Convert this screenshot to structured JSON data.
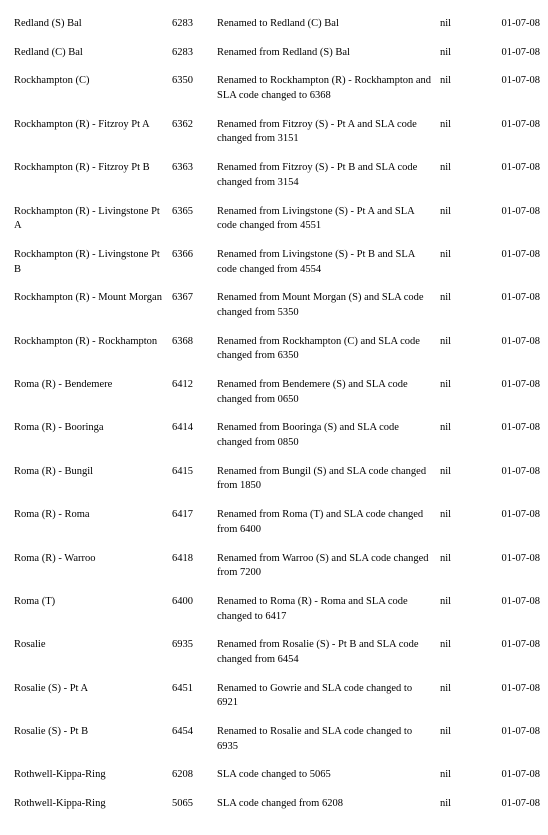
{
  "rows": [
    {
      "name": "Redland (S) Bal",
      "code": "6283",
      "desc": "Renamed to Redland (C) Bal",
      "nil": "nil",
      "date": "01-07-08"
    },
    {
      "name": "Redland (C) Bal",
      "code": "6283",
      "desc": "Renamed from Redland (S) Bal",
      "nil": "nil",
      "date": "01-07-08"
    },
    {
      "name": "Rockhampton (C)",
      "code": "6350",
      "desc": "Renamed to Rockhampton (R) - Rockhampton and SLA code changed to 6368",
      "nil": "nil",
      "date": "01-07-08"
    },
    {
      "name": "Rockhampton (R) - Fitzroy Pt A",
      "code": "6362",
      "desc": "Renamed from Fitzroy (S) - Pt A and SLA code changed from 3151",
      "nil": "nil",
      "date": "01-07-08"
    },
    {
      "name": "Rockhampton (R) - Fitzroy Pt B",
      "code": "6363",
      "desc": "Renamed from Fitzroy (S) - Pt B and SLA code changed from 3154",
      "nil": "nil",
      "date": "01-07-08"
    },
    {
      "name": "Rockhampton (R) - Livingstone Pt A",
      "code": "6365",
      "desc": "Renamed from Livingstone (S) - Pt A and SLA code changed from 4551",
      "nil": "nil",
      "date": "01-07-08"
    },
    {
      "name": "Rockhampton (R) - Livingstone Pt B",
      "code": "6366",
      "desc": "Renamed from Livingstone (S) - Pt B and SLA code changed from 4554",
      "nil": "nil",
      "date": "01-07-08"
    },
    {
      "name": "Rockhampton (R) - Mount Morgan",
      "code": "6367",
      "desc": "Renamed from Mount Morgan (S) and SLA code changed from 5350",
      "nil": "nil",
      "date": "01-07-08"
    },
    {
      "name": "Rockhampton (R) - Rockhampton",
      "code": "6368",
      "desc": "Renamed from Rockhampton (C) and SLA code changed from 6350",
      "nil": "nil",
      "date": "01-07-08"
    },
    {
      "name": "Roma (R) - Bendemere",
      "code": "6412",
      "desc": "Renamed from Bendemere (S) and SLA code changed from 0650",
      "nil": "nil",
      "date": "01-07-08"
    },
    {
      "name": "Roma (R) - Booringa",
      "code": "6414",
      "desc": "Renamed from Booringa (S) and SLA code changed from 0850",
      "nil": "nil",
      "date": "01-07-08"
    },
    {
      "name": "Roma (R) - Bungil",
      "code": "6415",
      "desc": "Renamed from Bungil (S) and SLA code changed from 1850",
      "nil": "nil",
      "date": "01-07-08"
    },
    {
      "name": "Roma (R) - Roma",
      "code": "6417",
      "desc": "Renamed from Roma (T) and SLA code changed from 6400",
      "nil": "nil",
      "date": "01-07-08"
    },
    {
      "name": "Roma (R) - Warroo",
      "code": "6418",
      "desc": "Renamed from Warroo (S) and SLA code changed from 7200",
      "nil": "nil",
      "date": "01-07-08"
    },
    {
      "name": "Roma (T)",
      "code": "6400",
      "desc": "Renamed to Roma (R) - Roma and SLA code changed to 6417",
      "nil": "nil",
      "date": "01-07-08"
    },
    {
      "name": "Rosalie",
      "code": "6935",
      "desc": "Renamed from Rosalie (S) - Pt B and SLA code changed from 6454",
      "nil": "nil",
      "date": "01-07-08"
    },
    {
      "name": "Rosalie (S) - Pt A",
      "code": "6451",
      "desc": "Renamed to Gowrie and SLA code changed to 6921",
      "nil": "nil",
      "date": "01-07-08"
    },
    {
      "name": "Rosalie (S) - Pt B",
      "code": "6454",
      "desc": "Renamed to Rosalie and SLA code changed to 6935",
      "nil": "nil",
      "date": "01-07-08"
    },
    {
      "name": "Rothwell-Kippa-Ring",
      "code": "6208",
      "desc": "SLA code changed to 5065",
      "nil": "nil",
      "date": "01-07-08"
    },
    {
      "name": "Rothwell-Kippa-Ring",
      "code": "5065",
      "desc": "SLA code changed from 6208",
      "nil": "nil",
      "date": "01-07-08"
    }
  ]
}
